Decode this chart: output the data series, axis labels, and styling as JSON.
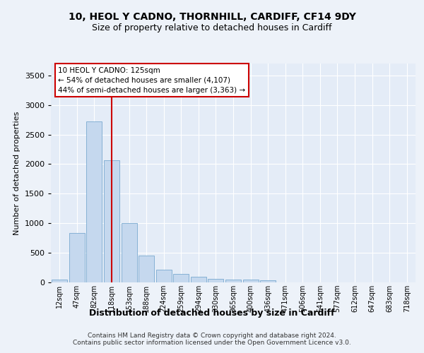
{
  "title1": "10, HEOL Y CADNO, THORNHILL, CARDIFF, CF14 9DY",
  "title2": "Size of property relative to detached houses in Cardiff",
  "xlabel": "Distribution of detached houses by size in Cardiff",
  "ylabel": "Number of detached properties",
  "categories": [
    "12sqm",
    "47sqm",
    "82sqm",
    "118sqm",
    "153sqm",
    "188sqm",
    "224sqm",
    "259sqm",
    "294sqm",
    "330sqm",
    "365sqm",
    "400sqm",
    "436sqm",
    "471sqm",
    "506sqm",
    "541sqm",
    "577sqm",
    "612sqm",
    "647sqm",
    "683sqm",
    "718sqm"
  ],
  "values": [
    50,
    840,
    2720,
    2060,
    1000,
    450,
    210,
    140,
    90,
    60,
    50,
    45,
    40,
    0,
    0,
    0,
    0,
    0,
    0,
    0,
    0
  ],
  "bar_color": "#c5d8ee",
  "bar_edge_color": "#7aaad0",
  "vline_color": "#cc0000",
  "vline_pos": 3.0,
  "annotation_text": "10 HEOL Y CADNO: 125sqm\n← 54% of detached houses are smaller (4,107)\n44% of semi-detached houses are larger (3,363) →",
  "annotation_box_color": "white",
  "annotation_box_edge_color": "#cc0000",
  "ylim": [
    0,
    3700
  ],
  "yticks": [
    0,
    500,
    1000,
    1500,
    2000,
    2500,
    3000,
    3500
  ],
  "footer1": "Contains HM Land Registry data © Crown copyright and database right 2024.",
  "footer2": "Contains public sector information licensed under the Open Government Licence v3.0.",
  "bg_color": "#edf2f9",
  "plot_bg_color": "#e4ecf7"
}
